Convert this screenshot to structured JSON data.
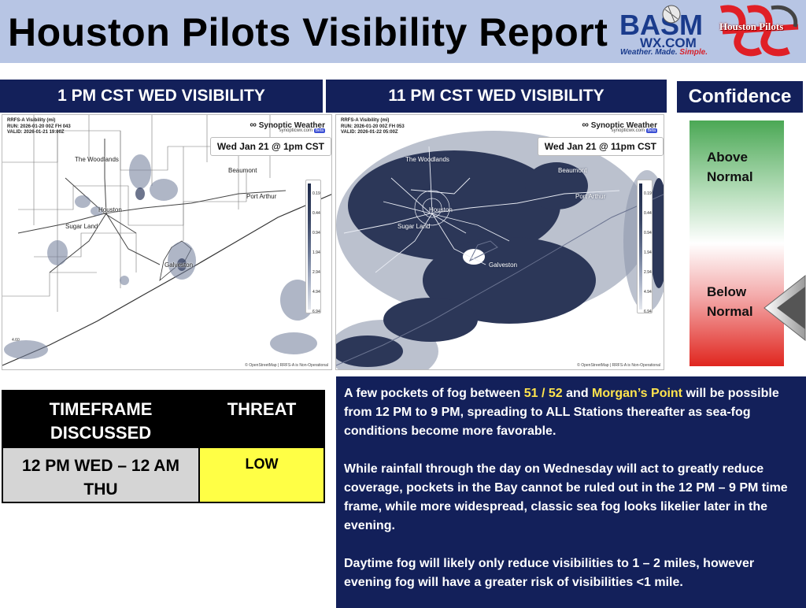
{
  "header": {
    "title": "Houston Pilots Visibility Report",
    "basm_logo_text": "BASM",
    "basm_logo_domain": "WX.COM",
    "basm_tagline_a": "Weather. Made. ",
    "basm_tagline_b": "Simple.",
    "houston_pilots_logo_text": "Houston Pilots"
  },
  "panels": {
    "left_title": "1 PM CST WED VISIBILITY",
    "right_title": "11 PM CST WED VISIBILITY",
    "confidence_title": "Confidence"
  },
  "maps": {
    "left": {
      "meta_line1": "RRFS-A Visibility (mi)",
      "meta_line2": "RUN: 2026-01-20 00Z FH 043",
      "meta_line3": "VALID: 2026-01-21 19:00Z",
      "brand": "Synoptic Weather",
      "brand_sub": "synopticwx.com",
      "brand_badge": "Beta",
      "time_label": "Wed Jan 21 @ 1pm CST",
      "corner_value": "4.60",
      "cities": {
        "woodlands": "The Woodlands",
        "beaumont": "Beaumont",
        "port_arthur": "Port Arthur",
        "houston": "Houston",
        "sugar_land": "Sugar Land",
        "galveston": "Galveston"
      }
    },
    "right": {
      "meta_line1": "RRFS-A Visibility (mi)",
      "meta_line2": "RUN: 2026-01-20 00Z FH 053",
      "meta_line3": "VALID: 2026-01-22 05:00Z",
      "brand": "Synoptic Weather",
      "brand_sub": "synopticwx.com",
      "brand_badge": "Beta",
      "time_label": "Wed Jan 21 @ 11pm CST",
      "cities": {
        "woodlands": "The Woodlands",
        "beaumont": "Beaumont",
        "port_arthur": "Port Arthur",
        "houston": "Houston",
        "sugar_land": "Sugar Land",
        "galveston": "Galveston"
      }
    },
    "legend_ticks": [
      "0.19",
      "0.44",
      "0.94",
      "1.94",
      "2.94",
      "4.94",
      "6.94"
    ],
    "osm_credit": "© OpenStreetMap | RRFS-A is Non-Operational"
  },
  "confidence": {
    "above": "Above Normal",
    "below": "Below Normal",
    "indicator": "Below Normal"
  },
  "threat_table": {
    "col_timeframe": "TIMEFRAME DISCUSSED",
    "col_threat": "THREAT",
    "timeframe": "12 PM WED – 12 AM THU",
    "threat": "LOW",
    "threat_color": "#ffff45"
  },
  "discussion": {
    "p1_a": "A few pockets of fog between ",
    "p1_hl1": "51 / 52",
    "p1_b": " and ",
    "p1_hl2": "Morgan’s Point",
    "p1_c": " will be possible from 12 PM to 9 PM, spreading to ALL Stations thereafter as sea-fog conditions become more favorable.",
    "p2": "While rainfall through the day on Wednesday will act to greatly reduce coverage, pockets in the Bay cannot be ruled out in the 12 PM – 9 PM time frame, while more widespread, classic sea fog looks likelier later in the evening.",
    "p3": "Daytime fog will likely only reduce visibilities to 1 – 2 miles, however evening fog will have a greater risk of visibilities <1 mile."
  },
  "colors": {
    "header_bg": "#b7c5e4",
    "navy": "#13205a",
    "highlight": "#ffe44d"
  }
}
